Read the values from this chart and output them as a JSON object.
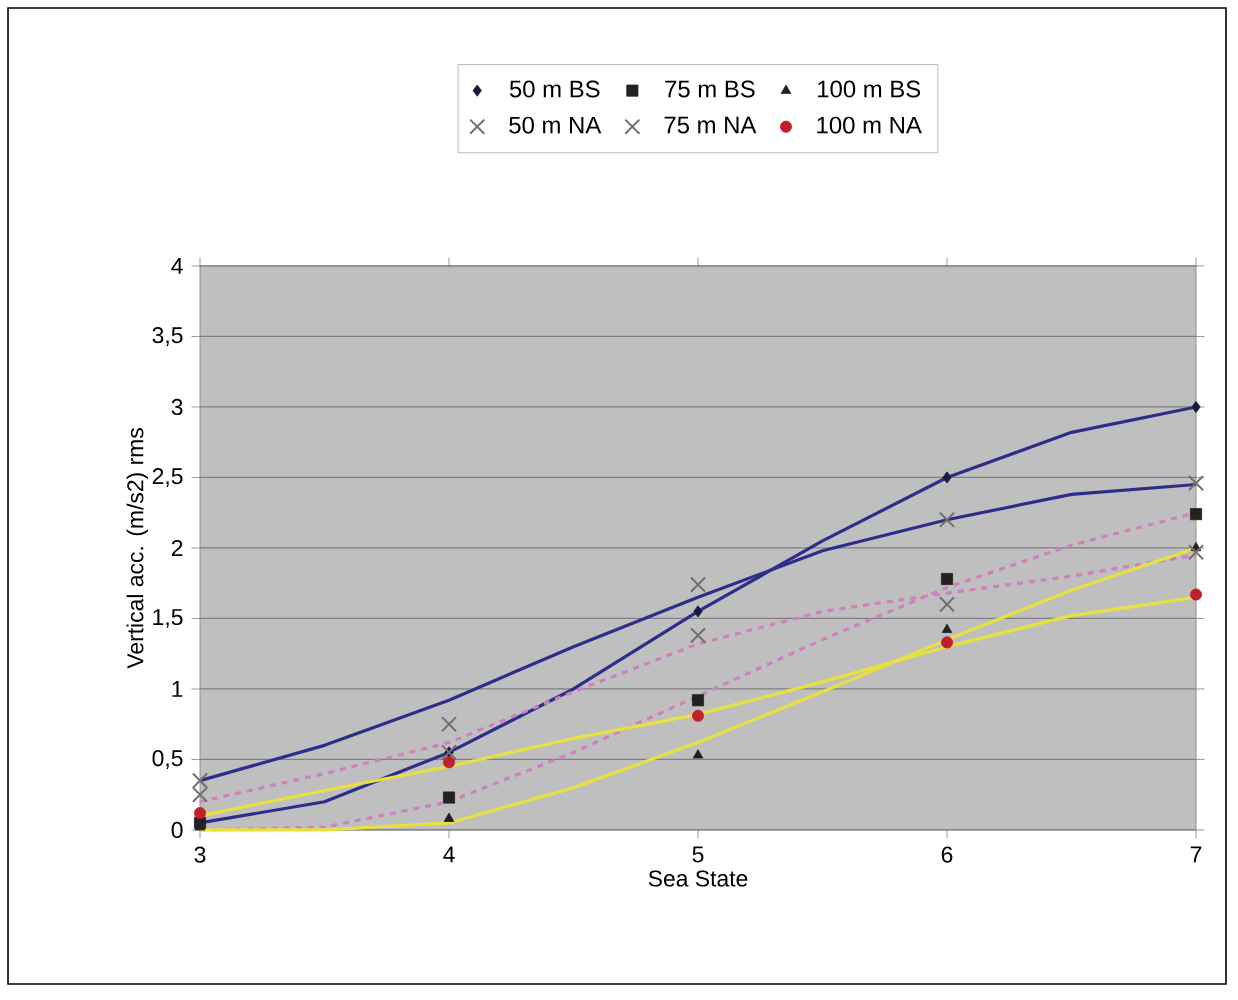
{
  "chart_data": {
    "type": "scatter",
    "xlabel": "Sea State",
    "ylabel": "Vertical acc. (m/s2) rms",
    "xlim": [
      3,
      7
    ],
    "xticks": [
      3,
      4,
      5,
      6,
      7
    ],
    "ylim": [
      0,
      4
    ],
    "yticks": [
      0,
      {
        "value": 0.5,
        "label": "0,5"
      },
      1,
      {
        "value": 1.5,
        "label": "1,5"
      },
      2,
      {
        "value": 2.5,
        "label": "2,5"
      },
      3,
      {
        "value": 3.5,
        "label": "3,5"
      },
      4
    ],
    "grid": "y",
    "legend": "top",
    "x": [
      3,
      4,
      5,
      6,
      7
    ],
    "series": [
      {
        "name": "50 m BS",
        "color": "#1a1a40",
        "marker": "diamond",
        "values": [
          null,
          0.55,
          1.55,
          2.5,
          3.0
        ]
      },
      {
        "name": "75 m BS",
        "color": "#222222",
        "marker": "square",
        "values": [
          0.05,
          0.23,
          0.92,
          1.78,
          2.24
        ]
      },
      {
        "name": "100 m BS",
        "color": "#222222",
        "marker": "triangle",
        "values": [
          0.02,
          0.08,
          0.53,
          1.42,
          2.0
        ]
      },
      {
        "name": "50 m NA",
        "color": "#707070",
        "marker": "cross",
        "values": [
          0.35,
          0.75,
          1.74,
          2.2,
          2.46
        ]
      },
      {
        "name": "75 m NA",
        "color": "#707070",
        "marker": "cross",
        "values": [
          0.25,
          0.55,
          1.38,
          1.6,
          1.97
        ]
      },
      {
        "name": "100 m NA",
        "color": "#c0202a",
        "marker": "circle",
        "values": [
          0.12,
          0.48,
          0.81,
          1.33,
          1.67
        ]
      },
      {
        "type": "line",
        "color": "#2e2e8a",
        "marker": "none",
        "line_style": "solid",
        "x": [
          3,
          3.5,
          4,
          4.5,
          5,
          5.5,
          6,
          6.5,
          7
        ],
        "values": [
          0.05,
          0.2,
          0.55,
          1.0,
          1.55,
          2.05,
          2.5,
          2.82,
          3.0
        ]
      },
      {
        "type": "line",
        "color": "#2e2e8a",
        "marker": "none",
        "line_style": "solid",
        "x": [
          3,
          3.5,
          4,
          4.5,
          5,
          5.5,
          6,
          6.5,
          7
        ],
        "values": [
          0.35,
          0.6,
          0.92,
          1.3,
          1.65,
          1.98,
          2.2,
          2.38,
          2.45
        ]
      },
      {
        "type": "line",
        "color": "#d080c0",
        "marker": "none",
        "line_style": "dashed",
        "x": [
          3,
          3.5,
          4,
          4.5,
          5,
          5.5,
          6,
          6.5,
          7
        ],
        "values": [
          0.0,
          0.02,
          0.2,
          0.55,
          0.95,
          1.35,
          1.72,
          2.02,
          2.25
        ]
      },
      {
        "type": "line",
        "color": "#d080c0",
        "marker": "none",
        "line_style": "dashed",
        "x": [
          3,
          3.5,
          4,
          4.5,
          5,
          5.5,
          6,
          6.5,
          7
        ],
        "values": [
          0.2,
          0.4,
          0.62,
          0.98,
          1.32,
          1.55,
          1.68,
          1.8,
          1.95
        ]
      },
      {
        "type": "line",
        "color": "#e8e040",
        "marker": "none",
        "line_style": "solid",
        "x": [
          3,
          3.5,
          4,
          4.5,
          5,
          5.5,
          6,
          6.5,
          7
        ],
        "values": [
          0.0,
          0.0,
          0.05,
          0.3,
          0.62,
          0.98,
          1.35,
          1.7,
          2.0
        ]
      },
      {
        "type": "line",
        "color": "#e8e040",
        "marker": "none",
        "line_style": "solid",
        "x": [
          3,
          3.5,
          4,
          4.5,
          5,
          5.5,
          6,
          6.5,
          7
        ],
        "values": [
          0.1,
          0.28,
          0.45,
          0.65,
          0.82,
          1.05,
          1.3,
          1.52,
          1.65
        ]
      }
    ]
  }
}
